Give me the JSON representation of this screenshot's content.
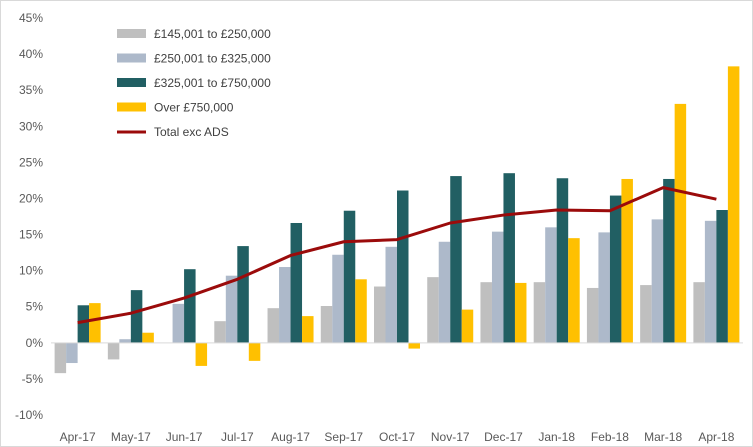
{
  "chart_data": {
    "type": "bar",
    "title": "",
    "xlabel": "",
    "ylabel": "",
    "categories": [
      "Apr-17",
      "May-17",
      "Jun-17",
      "Jul-17",
      "Aug-17",
      "Sep-17",
      "Oct-17",
      "Nov-17",
      "Dec-17",
      "Jan-18",
      "Feb-18",
      "Mar-18",
      "Apr-18"
    ],
    "ylim": [
      -10,
      45
    ],
    "yticks": [
      "-10%",
      "-5%",
      "0%",
      "5%",
      "10%",
      "15%",
      "20%",
      "25%",
      "30%",
      "35%",
      "40%",
      "45%"
    ],
    "ytick_values": [
      -10,
      -5,
      0,
      5,
      10,
      15,
      20,
      25,
      30,
      35,
      40,
      45
    ],
    "grid": false,
    "legend_position": "top-left",
    "series": [
      {
        "name": "£145,001 to £250,000",
        "type": "bar",
        "color": "#bfbfbf",
        "values": [
          -4.2,
          -2.3,
          null,
          3.0,
          4.8,
          5.1,
          7.8,
          9.1,
          8.4,
          8.4,
          7.6,
          8.0,
          8.4
        ]
      },
      {
        "name": "£250,001 to £325,000",
        "type": "bar",
        "color": "#adb9ca",
        "values": [
          -2.8,
          0.5,
          5.4,
          9.3,
          10.5,
          12.2,
          13.3,
          14.0,
          15.4,
          16.0,
          15.3,
          17.1,
          16.9
        ]
      },
      {
        "name": "£325,001 to £750,000",
        "type": "bar",
        "color": "#215f63",
        "values": [
          5.2,
          7.3,
          10.2,
          13.4,
          16.6,
          18.3,
          21.1,
          23.1,
          23.5,
          22.8,
          20.4,
          22.7,
          18.4
        ]
      },
      {
        "name": "Over £750,000",
        "type": "bar",
        "color": "#ffc000",
        "values": [
          5.5,
          1.4,
          -3.2,
          -2.5,
          3.7,
          8.8,
          -0.8,
          4.6,
          8.3,
          14.5,
          22.7,
          33.1,
          38.3
        ]
      },
      {
        "name": "Total exc ADS",
        "type": "line",
        "color": "#9b0b0b",
        "values": [
          2.8,
          4.1,
          6.2,
          8.8,
          12.1,
          14.0,
          14.3,
          16.6,
          17.7,
          18.4,
          18.3,
          21.5,
          19.9
        ]
      }
    ]
  }
}
